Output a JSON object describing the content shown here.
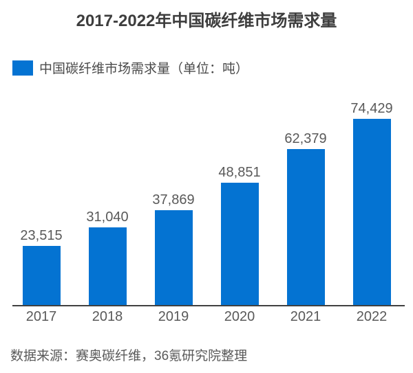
{
  "chart_data": {
    "type": "bar",
    "title": "2017-2022年中国碳纤维市场需求量",
    "legend": "中国碳纤维市场需求量（单位：吨）",
    "categories": [
      "2017",
      "2018",
      "2019",
      "2020",
      "2021",
      "2022"
    ],
    "values": [
      23515,
      31040,
      37869,
      48851,
      62379,
      74429
    ],
    "value_labels": [
      "23,515",
      "31,040",
      "37,869",
      "48,851",
      "62,379",
      "74,429"
    ],
    "source": "数据来源：赛奥碳纤维，36氪研究院整理",
    "bar_color": "#0473D2",
    "axis_color": "#404040",
    "ylim": [
      0,
      74429
    ],
    "grid": false,
    "legend_position": "top-left",
    "xlabel": "",
    "ylabel": ""
  }
}
